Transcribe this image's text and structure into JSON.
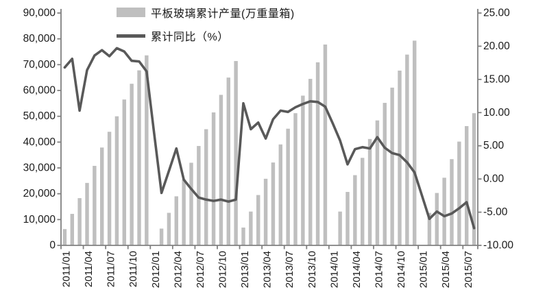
{
  "chart_data": {
    "type": "combo",
    "title": "",
    "grid": "off",
    "legend_position": "top-inside-left",
    "x_months": [
      "2011/01",
      "2011/02",
      "2011/03",
      "2011/04",
      "2011/05",
      "2011/06",
      "2011/07",
      "2011/08",
      "2011/09",
      "2011/10",
      "2011/11",
      "2011/12",
      "2012/01",
      "2012/02",
      "2012/03",
      "2012/04",
      "2012/05",
      "2012/06",
      "2012/07",
      "2012/08",
      "2012/09",
      "2012/10",
      "2012/11",
      "2012/12",
      "2013/01",
      "2013/02",
      "2013/03",
      "2013/04",
      "2013/05",
      "2013/06",
      "2013/07",
      "2013/08",
      "2013/09",
      "2013/10",
      "2013/11",
      "2013/12",
      "2014/01",
      "2014/02",
      "2014/03",
      "2014/04",
      "2014/05",
      "2014/06",
      "2014/07",
      "2014/08",
      "2014/09",
      "2014/10",
      "2014/11",
      "2014/12",
      "2015/01",
      "2015/02",
      "2015/03",
      "2015/04",
      "2015/05",
      "2015/06",
      "2015/07",
      "2015/08"
    ],
    "x_tick_labels": [
      "2011/01",
      "2011/04",
      "2011/07",
      "2011/10",
      "2012/01",
      "2012/04",
      "2012/07",
      "2012/10",
      "2013/01",
      "2013/04",
      "2013/07",
      "2013/10",
      "2014/01",
      "2014/04",
      "2014/07",
      "2014/10",
      "2015/01",
      "2015/04",
      "2015/07"
    ],
    "series": [
      {
        "name": "平板玻璃累计产量(万重量箱)",
        "type": "bar",
        "axis": "left",
        "color": "#bfbfbf",
        "values": [
          6300,
          12200,
          18300,
          24200,
          30800,
          37900,
          44000,
          50000,
          56500,
          62600,
          67800,
          73600,
          null,
          6500,
          12600,
          19000,
          25500,
          32000,
          38500,
          45000,
          51500,
          58300,
          65000,
          71400,
          6900,
          13100,
          19500,
          25800,
          32100,
          39100,
          45200,
          51200,
          58000,
          64500,
          70900,
          77800,
          null,
          13100,
          20700,
          27200,
          33900,
          41200,
          48400,
          55200,
          61100,
          67700,
          73900,
          79300,
          null,
          12600,
          20300,
          26200,
          33400,
          40200,
          46200,
          51200
        ]
      },
      {
        "name": "累计同比（%）",
        "type": "line",
        "axis": "right",
        "color": "#595959",
        "values": [
          16.8,
          18.1,
          10.3,
          16.4,
          18.6,
          19.4,
          18.5,
          19.7,
          19.2,
          17.8,
          17.7,
          16.2,
          7.0,
          -2.1,
          1.2,
          4.6,
          -0.1,
          -1.5,
          -2.8,
          -3.1,
          -3.3,
          -3.1,
          -3.4,
          -3.1,
          11.4,
          7.5,
          8.5,
          6.1,
          9.0,
          10.3,
          10.1,
          10.8,
          11.3,
          11.7,
          11.6,
          10.9,
          8.4,
          5.8,
          2.2,
          4.5,
          4.8,
          4.6,
          6.3,
          4.7,
          3.9,
          3.6,
          2.5,
          1.0,
          -2.5,
          -6.0,
          -4.9,
          -5.6,
          -5.2,
          -4.4,
          -3.5,
          -7.4
        ]
      }
    ],
    "left_axis": {
      "min": 0,
      "max": 90000,
      "step": 10000,
      "tick_labels_top_to_bottom": [
        "90,000",
        "80,000",
        "70,000",
        "60,000",
        "50,000",
        "40,000",
        "30,000",
        "20,000",
        "10,000",
        "0"
      ]
    },
    "right_axis": {
      "min": -10,
      "max": 25,
      "step": 5,
      "tick_labels_top_to_bottom": [
        "25.00",
        "20.00",
        "15.00",
        "10.00",
        "5.00",
        "0.00",
        "-5.00",
        "-10.00"
      ]
    }
  },
  "colors": {
    "axis": "#808080",
    "text": "#1a1a1a",
    "background": "#ffffff"
  }
}
